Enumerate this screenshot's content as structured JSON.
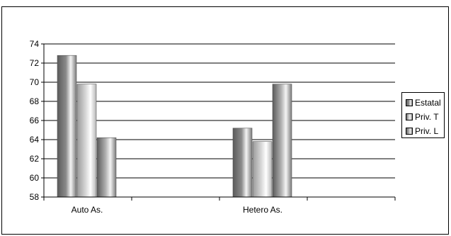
{
  "chart_data": {
    "type": "bar",
    "categories": [
      "Auto As.",
      "Hetero As."
    ],
    "series": [
      {
        "name": "Estatal",
        "values": [
          72.8,
          65.2
        ],
        "color": "#8a8a8a"
      },
      {
        "name": "Priv. T",
        "values": [
          69.8,
          63.8
        ],
        "color": "#d8d8d8"
      },
      {
        "name": "Priv. L",
        "values": [
          64.2,
          69.8
        ],
        "color": "#b0b0b0"
      }
    ],
    "yticks": [
      58,
      60,
      62,
      64,
      66,
      68,
      70,
      72,
      74
    ],
    "ylim": [
      58,
      74
    ],
    "grid": true,
    "legend_position": "right"
  }
}
